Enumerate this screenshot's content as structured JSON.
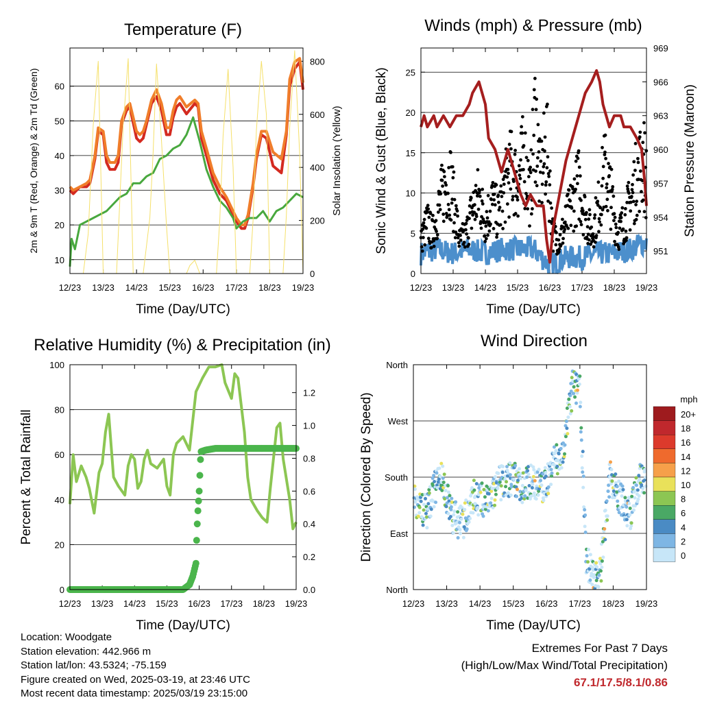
{
  "panels": {
    "temperature": {
      "title": "Temperature (F)",
      "xlabel": "Time (Day/UTC)",
      "ylabel": "2m & 9m T (Red, Orange) & 2m Td (Green)",
      "ylabel_right": "Solar Insolation (Yellow)"
    },
    "winds": {
      "title": "Winds (mph) & Pressure (mb)",
      "xlabel": "Time (Day/UTC)",
      "ylabel": "Sonic Wind & Gust (Blue, Black)",
      "ylabel_right": "Station Pressure (Maroon)"
    },
    "humidity": {
      "title": "Relative Humidity (%) & Precipitation (in)",
      "xlabel": "Time (Day/UTC)",
      "ylabel": "Percent & Total Rainfall"
    },
    "direction": {
      "title": "Wind Direction",
      "xlabel": "Time (Day/UTC)",
      "ylabel": "Direction (Colored By Speed)",
      "colorbar_unit": "mph",
      "colorbar_labels": [
        "20+",
        "18",
        "16",
        "14",
        "12",
        "10",
        "8",
        "6",
        "4",
        "2",
        "0"
      ],
      "colorbar_colors": [
        "#9e1b1e",
        "#c0282d",
        "#dc3a2c",
        "#ef6a2d",
        "#f6a04a",
        "#e9e15a",
        "#8cc653",
        "#4aa865",
        "#4a8bc4",
        "#7eb6e4",
        "#c7e6f8"
      ]
    }
  },
  "info": {
    "location": "Location: Woodgate",
    "elevation": "Station elevation: 442.966 m",
    "latlon": "Station lat/lon: 43.5324; -75.159",
    "created": "Figure created on Wed, 2025-03-19, at 23:46 UTC",
    "recent": "Most recent data timestamp: 2025/03/19 23:15:00"
  },
  "extremes": {
    "title": "Extremes For Past 7 Days",
    "subtitle": "(High/Low/Max Wind/Total Precipitation)",
    "values": "67.1/17.5/8.1/0.86"
  },
  "chart_data": [
    {
      "type": "line",
      "title": "Temperature (F)",
      "xlabel": "Time (Day/UTC)",
      "ylabel": "2m & 9m T (Red, Orange) & 2m Td (Green)",
      "ylabel_right": "Solar Insolation (Yellow)",
      "x_ticks": [
        "12/23",
        "13/23",
        "14/23",
        "15/23",
        "16/23",
        "17/23",
        "18/23",
        "19/23"
      ],
      "xlim": [
        0,
        7
      ],
      "ylim": [
        6,
        71
      ],
      "y_ticks": [
        10,
        20,
        30,
        40,
        50,
        60
      ],
      "ylim_right": [
        0,
        850
      ],
      "y_ticks_right": [
        0,
        200,
        400,
        600,
        800
      ],
      "series": [
        {
          "name": "2m T",
          "color": "#d42a20",
          "x": [
            0,
            0.1,
            0.3,
            0.5,
            0.6,
            0.75,
            0.85,
            1.0,
            1.1,
            1.2,
            1.35,
            1.45,
            1.55,
            1.7,
            1.8,
            2.0,
            2.1,
            2.2,
            2.3,
            2.45,
            2.6,
            2.75,
            2.9,
            3.0,
            3.1,
            3.2,
            3.3,
            3.5,
            3.75,
            3.85,
            3.95,
            4.1,
            4.3,
            4.5,
            4.7,
            4.85,
            5.0,
            5.15,
            5.25,
            5.35,
            5.5,
            5.6,
            5.75,
            5.9,
            6.1,
            6.35,
            6.5,
            6.6,
            6.75,
            6.9,
            7.0
          ],
          "y": [
            30,
            29,
            31,
            31,
            32,
            39,
            47,
            46,
            38,
            36,
            36,
            38,
            49,
            53,
            54,
            45,
            44,
            45,
            49,
            55,
            57,
            53,
            46,
            46,
            51,
            54,
            55,
            52,
            55,
            54,
            45,
            40,
            33,
            29,
            27,
            24,
            21,
            19,
            19,
            22,
            31,
            39,
            46,
            45,
            37,
            35,
            46,
            60,
            65,
            67,
            59
          ]
        },
        {
          "name": "9m T",
          "color": "#f07d2a",
          "x": [
            0,
            0.1,
            0.3,
            0.5,
            0.6,
            0.75,
            0.85,
            1.0,
            1.1,
            1.2,
            1.35,
            1.45,
            1.55,
            1.7,
            1.8,
            2.0,
            2.1,
            2.2,
            2.3,
            2.45,
            2.6,
            2.75,
            2.9,
            3.0,
            3.1,
            3.2,
            3.3,
            3.5,
            3.75,
            3.85,
            3.95,
            4.1,
            4.3,
            4.5,
            4.7,
            4.85,
            5.0,
            5.15,
            5.25,
            5.35,
            5.5,
            5.6,
            5.75,
            5.9,
            6.1,
            6.35,
            6.5,
            6.6,
            6.75,
            6.9,
            7.0
          ],
          "y": [
            31,
            30,
            31,
            32,
            33,
            40,
            48,
            47,
            40,
            38,
            38,
            40,
            50,
            54,
            55,
            47,
            46,
            47,
            50,
            56,
            59,
            55,
            48,
            48,
            53,
            56,
            57,
            54,
            56,
            55,
            47,
            42,
            35,
            31,
            28,
            25,
            22,
            20,
            20,
            23,
            32,
            40,
            47,
            47,
            41,
            39,
            47,
            62,
            67,
            68,
            61
          ]
        },
        {
          "name": "2m Td",
          "color": "#48a83e",
          "x": [
            0,
            0.05,
            0.15,
            0.3,
            0.5,
            0.7,
            0.9,
            1.1,
            1.3,
            1.5,
            1.7,
            1.9,
            2.1,
            2.3,
            2.5,
            2.7,
            2.9,
            3.1,
            3.3,
            3.5,
            3.7,
            3.9,
            4.1,
            4.3,
            4.5,
            4.7,
            4.9,
            5.0,
            5.2,
            5.4,
            5.6,
            5.8,
            6.0,
            6.2,
            6.4,
            6.6,
            6.8,
            7.0
          ],
          "y": [
            8,
            16,
            13,
            20,
            21,
            22,
            23,
            24,
            26,
            28,
            29,
            32,
            32,
            34,
            35,
            39,
            40,
            42,
            43,
            46,
            51,
            44,
            36,
            31,
            27,
            25,
            22,
            19,
            21,
            22,
            22,
            24,
            21,
            24,
            25,
            27,
            29,
            28
          ]
        },
        {
          "name": "Solar Insolation",
          "color": "#f5e06a",
          "axis": "right",
          "x": [
            0,
            0.2,
            0.4,
            0.55,
            0.7,
            0.85,
            1.0,
            1.2,
            1.4,
            1.5,
            1.6,
            1.75,
            1.9,
            2.0,
            2.2,
            2.4,
            2.5,
            2.6,
            2.75,
            2.9,
            3.0,
            3.2,
            3.4,
            3.5,
            3.6,
            3.75,
            3.9,
            4.0,
            4.2,
            4.4,
            4.5,
            4.6,
            4.75,
            4.9,
            5.0,
            5.2,
            5.4,
            5.5,
            5.6,
            5.75,
            5.9,
            6.0,
            6.2,
            6.4,
            6.5,
            6.6,
            6.75,
            6.9,
            7.0
          ],
          "y": [
            0,
            0,
            0,
            150,
            560,
            800,
            0,
            0,
            0,
            280,
            560,
            810,
            0,
            0,
            0,
            210,
            460,
            790,
            500,
            180,
            0,
            0,
            0,
            0,
            30,
            50,
            0,
            0,
            0,
            0,
            200,
            520,
            770,
            400,
            0,
            0,
            0,
            200,
            540,
            800,
            600,
            0,
            0,
            0,
            220,
            550,
            840,
            450,
            0
          ]
        }
      ]
    },
    {
      "type": "scatter",
      "title": "Winds (mph) & Pressure (mb)",
      "xlabel": "Time (Day/UTC)",
      "ylabel": "Sonic Wind & Gust (Blue, Black)",
      "ylabel_right": "Station Pressure (Maroon)",
      "x_ticks": [
        "12/23",
        "13/23",
        "14/23",
        "15/23",
        "16/23",
        "17/23",
        "18/23",
        "19/23"
      ],
      "xlim": [
        0,
        7
      ],
      "ylim": [
        0,
        28
      ],
      "y_ticks": [
        0,
        5,
        10,
        15,
        20,
        25
      ],
      "ylim_right": [
        949,
        969
      ],
      "y_ticks_right": [
        951,
        954,
        957,
        960,
        963,
        966,
        969
      ],
      "series": [
        {
          "name": "Sonic Wind",
          "color": "#4c8fcc",
          "x": [
            0,
            0.5,
            1.0,
            1.5,
            2.0,
            2.5,
            3.0,
            3.5,
            4.0,
            4.5,
            5.0,
            5.5,
            6.0,
            6.5,
            7.0
          ],
          "y": [
            2.5,
            3,
            2.5,
            3,
            2.5,
            3,
            3,
            3,
            1,
            2,
            2,
            2.5,
            2.5,
            3,
            4
          ]
        },
        {
          "name": "Gust",
          "color": "#000000",
          "x": [
            0,
            0.2,
            0.35,
            0.55,
            0.7,
            0.9,
            1.2,
            1.4,
            1.6,
            1.8,
            2.0,
            2.2,
            2.4,
            2.6,
            2.8,
            3.0,
            3.2,
            3.4,
            3.55,
            3.7,
            3.9,
            4.1,
            4.3,
            4.5,
            4.7,
            4.9,
            5.1,
            5.3,
            5.5,
            5.7,
            5.9,
            6.1,
            6.3,
            6.5,
            6.7,
            6.9,
            7.0
          ],
          "y": [
            5,
            8,
            6,
            10,
            13,
            15,
            5,
            6,
            10,
            12,
            8,
            11,
            9,
            13,
            16,
            14,
            18,
            12,
            25,
            14,
            20,
            6,
            5,
            8,
            11,
            14,
            9,
            6,
            10,
            16,
            12,
            6,
            8,
            11,
            15,
            18,
            14
          ]
        },
        {
          "name": "Station Pressure",
          "color": "#a51e1e",
          "axis": "right",
          "x": [
            0,
            0.1,
            0.2,
            0.4,
            0.5,
            0.7,
            0.9,
            1.1,
            1.3,
            1.5,
            1.6,
            1.8,
            2.0,
            2.1,
            2.3,
            2.5,
            2.7,
            2.9,
            3.1,
            3.25,
            3.4,
            3.6,
            3.8,
            3.9,
            4.0,
            4.1,
            4.3,
            4.5,
            4.7,
            4.9,
            5.1,
            5.3,
            5.45,
            5.55,
            5.65,
            5.75,
            5.85,
            6.0,
            6.2,
            6.3,
            6.5,
            6.7,
            6.85,
            6.95,
            7.0
          ],
          "y": [
            962,
            963,
            962,
            963,
            962,
            963,
            962,
            963,
            963,
            964,
            965,
            966,
            964,
            961,
            960,
            958,
            960,
            958,
            956,
            955,
            956,
            955,
            955,
            952,
            950,
            953,
            956,
            959,
            961,
            963,
            965,
            966,
            967,
            966,
            964,
            963,
            962,
            963,
            963,
            962,
            962,
            961,
            960,
            957,
            955
          ]
        }
      ]
    },
    {
      "type": "line",
      "title": "Relative Humidity (%) & Precipitation (in)",
      "xlabel": "Time (Day/UTC)",
      "ylabel": "Percent & Total Rainfall",
      "x_ticks": [
        "12/23",
        "13/23",
        "14/23",
        "15/23",
        "16/23",
        "17/23",
        "18/23",
        "19/23"
      ],
      "xlim": [
        0,
        7
      ],
      "ylim": [
        0,
        100
      ],
      "y_ticks": [
        0,
        20,
        40,
        60,
        80,
        100
      ],
      "ylim_right": [
        0,
        1.37
      ],
      "y_ticks_right": [
        0.0,
        0.2,
        0.4,
        0.6,
        0.8,
        1.0,
        1.2
      ],
      "series": [
        {
          "name": "Relative Humidity",
          "color": "#8cc653",
          "x": [
            0,
            0.1,
            0.2,
            0.35,
            0.5,
            0.6,
            0.75,
            0.9,
            1.0,
            1.1,
            1.2,
            1.35,
            1.5,
            1.7,
            1.8,
            1.9,
            2.0,
            2.1,
            2.2,
            2.3,
            2.4,
            2.5,
            2.7,
            2.9,
            3.0,
            3.1,
            3.2,
            3.3,
            3.5,
            3.7,
            3.9,
            4.1,
            4.3,
            4.5,
            4.7,
            4.8,
            5.0,
            5.1,
            5.2,
            5.3,
            5.4,
            5.5,
            5.6,
            5.8,
            5.95,
            6.1,
            6.2,
            6.4,
            6.5,
            6.6,
            6.8,
            6.9,
            7.0
          ],
          "y": [
            38,
            60,
            48,
            55,
            50,
            45,
            34,
            52,
            56,
            70,
            78,
            50,
            46,
            42,
            55,
            60,
            58,
            45,
            48,
            58,
            62,
            56,
            54,
            58,
            46,
            42,
            60,
            65,
            68,
            62,
            88,
            94,
            99,
            99,
            100,
            92,
            85,
            96,
            94,
            82,
            70,
            50,
            40,
            35,
            32,
            30,
            45,
            72,
            74,
            58,
            40,
            27,
            30
          ]
        },
        {
          "name": "Total Precipitation",
          "color": "#4bb54c",
          "axis": "right",
          "x": [
            0,
            1,
            2,
            3,
            3.5,
            3.7,
            3.8,
            3.9,
            3.92,
            3.95,
            4.0,
            4.05,
            4.2,
            4.5,
            5.0,
            5.5,
            6.0,
            6.5,
            7.0
          ],
          "y": [
            0.0,
            0.0,
            0.0,
            0.0,
            0.0,
            0.03,
            0.08,
            0.16,
            0.3,
            0.45,
            0.6,
            0.84,
            0.85,
            0.86,
            0.86,
            0.86,
            0.86,
            0.86,
            0.86
          ]
        }
      ]
    },
    {
      "type": "scatter",
      "title": "Wind Direction",
      "xlabel": "Time (Day/UTC)",
      "ylabel": "Direction (Colored By Speed)",
      "x_ticks": [
        "12/23",
        "13/23",
        "14/23",
        "15/23",
        "16/23",
        "17/23",
        "18/23",
        "19/23"
      ],
      "xlim": [
        0,
        7
      ],
      "y_ticks": [
        "North",
        "East",
        "South",
        "West",
        "North"
      ],
      "ylim": [
        0,
        360
      ],
      "series": [
        {
          "name": "Wind Direction",
          "x": [
            0.1,
            0.4,
            0.8,
            1.2,
            1.5,
            1.8,
            2.2,
            2.6,
            3.0,
            3.3,
            3.6,
            3.9,
            4.2,
            4.5,
            4.8,
            5.0,
            5.2,
            5.6,
            5.9,
            6.2,
            6.5,
            6.8
          ],
          "y": [
            140,
            125,
            185,
            115,
            105,
            150,
            140,
            170,
            180,
            165,
            175,
            160,
            200,
            220,
            330,
            320,
            40,
            20,
            180,
            145,
            120,
            175
          ]
        }
      ]
    }
  ]
}
